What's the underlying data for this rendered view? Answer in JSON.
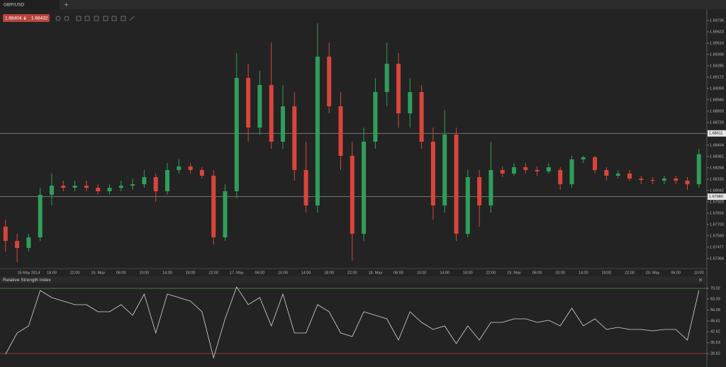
{
  "chart_data": [
    {
      "type": "candlestick",
      "title": "GBP/USD",
      "quote": {
        "bid": "1.68404",
        "ask": "1.68432"
      },
      "categories": [
        null,
        null,
        "15 May 2014",
        null,
        "18:00",
        null,
        "22:00",
        null,
        "16. May",
        null,
        "06:00",
        null,
        "10:00",
        null,
        "14:00",
        null,
        "18:00",
        null,
        "22:00",
        null,
        "17. May",
        null,
        "06:00",
        null,
        "10:00",
        null,
        "14:00",
        null,
        "18:00",
        null,
        "22:00",
        null,
        "18. May",
        null,
        "06:00",
        null,
        "10:00",
        null,
        "14:00",
        null,
        "18:00",
        null,
        "22:00",
        null,
        "19. May",
        null,
        "06:00",
        null,
        "10:00",
        null,
        "14:00",
        null,
        "18:00",
        null,
        "22:00",
        null,
        "20. May",
        null,
        "06:00",
        null,
        "10:00"
      ],
      "open": [
        1.67681,
        1.67539,
        1.67469,
        1.67575,
        1.67999,
        1.6809,
        1.68069,
        1.6809,
        1.68069,
        1.68034,
        1.68069,
        1.6809,
        1.68104,
        1.68175,
        1.68034,
        1.68246,
        1.68281,
        1.68246,
        1.68189,
        1.67575,
        1.68034,
        1.69164,
        1.68669,
        1.69093,
        1.68528,
        1.68881,
        1.68246,
        1.67893,
        1.69376,
        1.68881,
        1.68387,
        1.6761,
        1.68528,
        1.69023,
        1.69305,
        1.68811,
        1.69023,
        1.68528,
        1.67893,
        1.68599,
        1.6761,
        1.68175,
        1.67893,
        1.68246,
        1.68211,
        1.68274,
        1.68246,
        1.68232,
        1.68246,
        1.68104,
        1.68352,
        1.68373,
        1.68246,
        1.68189,
        1.68211,
        1.68161,
        1.68147,
        1.6814,
        1.68161,
        1.6814,
        1.68104
      ],
      "high": [
        1.67751,
        1.6761,
        1.6761,
        1.68069,
        1.68211,
        1.6814,
        1.6814,
        1.6814,
        1.68104,
        1.68104,
        1.6814,
        1.68161,
        1.68246,
        1.68211,
        1.68316,
        1.68352,
        1.68316,
        1.68274,
        1.68246,
        1.68104,
        1.69411,
        1.69305,
        1.69235,
        1.69517,
        1.69093,
        1.69023,
        1.68528,
        1.69708,
        1.69517,
        1.69023,
        1.68528,
        1.68669,
        1.69164,
        1.69517,
        1.69411,
        1.69164,
        1.69093,
        1.68669,
        1.68846,
        1.68669,
        1.68246,
        1.68246,
        1.68528,
        1.68281,
        1.68316,
        1.68316,
        1.68281,
        1.68316,
        1.68274,
        1.68387,
        1.68387,
        1.68387,
        1.68274,
        1.68246,
        1.68246,
        1.68189,
        1.68175,
        1.68189,
        1.68189,
        1.68175,
        1.68458
      ],
      "low": [
        1.67433,
        1.67328,
        1.67433,
        1.67539,
        1.67893,
        1.68034,
        1.68034,
        1.68034,
        1.67999,
        1.67999,
        1.68034,
        1.68048,
        1.68069,
        1.67928,
        1.67999,
        1.68211,
        1.68211,
        1.68161,
        1.67504,
        1.67539,
        1.67963,
        1.68528,
        1.68599,
        1.68458,
        1.68458,
        1.6814,
        1.67822,
        1.67822,
        1.68811,
        1.68246,
        1.67342,
        1.67539,
        1.68458,
        1.68881,
        1.68669,
        1.68669,
        1.68458,
        1.67751,
        1.67822,
        1.67539,
        1.67575,
        1.67681,
        1.67822,
        1.68175,
        1.68189,
        1.68211,
        1.68189,
        1.68211,
        1.68048,
        1.68069,
        1.68316,
        1.68211,
        1.6814,
        1.68161,
        1.6814,
        1.68104,
        1.68104,
        1.68104,
        1.68104,
        1.68048,
        1.68069
      ],
      "close": [
        1.67539,
        1.67469,
        1.67575,
        1.67999,
        1.6809,
        1.68069,
        1.6809,
        1.68069,
        1.68034,
        1.68069,
        1.6809,
        1.68104,
        1.68175,
        1.68034,
        1.68246,
        1.68281,
        1.68246,
        1.68189,
        1.67575,
        1.68034,
        1.69164,
        1.68669,
        1.69093,
        1.68528,
        1.68881,
        1.68246,
        1.67893,
        1.69376,
        1.68881,
        1.68387,
        1.6761,
        1.68528,
        1.69023,
        1.69305,
        1.68811,
        1.69023,
        1.68528,
        1.67893,
        1.68599,
        1.6761,
        1.68175,
        1.67893,
        1.68246,
        1.68211,
        1.68274,
        1.68246,
        1.68232,
        1.68274,
        1.68104,
        1.68352,
        1.68373,
        1.68246,
        1.68189,
        1.68211,
        1.68161,
        1.68147,
        1.6814,
        1.68161,
        1.6814,
        1.68104,
        1.68404
      ],
      "up_color": "#2f9e5a",
      "down_color": "#d9453b",
      "ylim": [
        1.67271,
        1.69842
      ],
      "yticks": [
        1.69736,
        1.69623,
        {
          "value": 1.6951,
          "label": "1.69510"
        },
        1.69398,
        1.69285,
        1.69172,
        1.69059,
        1.68946,
        1.68833,
        {
          "value": 1.6872,
          "label": "1.68720"
        },
        1.68494,
        1.68381,
        1.68268,
        1.68155,
        1.68042,
        1.67929,
        1.67816,
        1.67703,
        {
          "value": 1.6759,
          "label": "1.67590"
        },
        1.67477,
        1.67364
      ],
      "hlines": [
        1.68611,
        {
          "value": 1.6798,
          "label": "1.67980"
        }
      ],
      "hline_color": "#8c8c8c"
    },
    {
      "type": "line",
      "title": "Relative Strength Index",
      "values": [
        28.37,
        41.81,
        46.29,
        68.68,
        64.2,
        61.96,
        59.72,
        59.72,
        55.24,
        55.24,
        59.72,
        53.0,
        66.44,
        41.81,
        66.44,
        64.2,
        61.96,
        55.24,
        26.13,
        50.76,
        70.92,
        59.72,
        64.2,
        46.29,
        66.44,
        41.81,
        41.81,
        59.72,
        55.24,
        41.81,
        39.57,
        55.24,
        53.0,
        50.76,
        37.33,
        55.24,
        48.52,
        44.05,
        46.29,
        35.09,
        46.29,
        37.33,
        48.52,
        48.52,
        50.76,
        50.76,
        48.52,
        49.87,
        46.29,
        57.48,
        46.29,
        50.76,
        44.05,
        45.39,
        44.05,
        44.05,
        43.15,
        44.05,
        44.05,
        37.33,
        68.68
      ],
      "color": "#d8d8d8",
      "ylim": [
        20.31,
        73.15
      ],
      "yticks": [
        70.02,
        63.33,
        56.28,
        49.42,
        42.62,
        35.63,
        28.82
      ],
      "levels": [
        {
          "value": 70.02,
          "color": "#4c9a3c"
        },
        {
          "value": 28.82,
          "color": "#b83a35"
        }
      ]
    }
  ]
}
